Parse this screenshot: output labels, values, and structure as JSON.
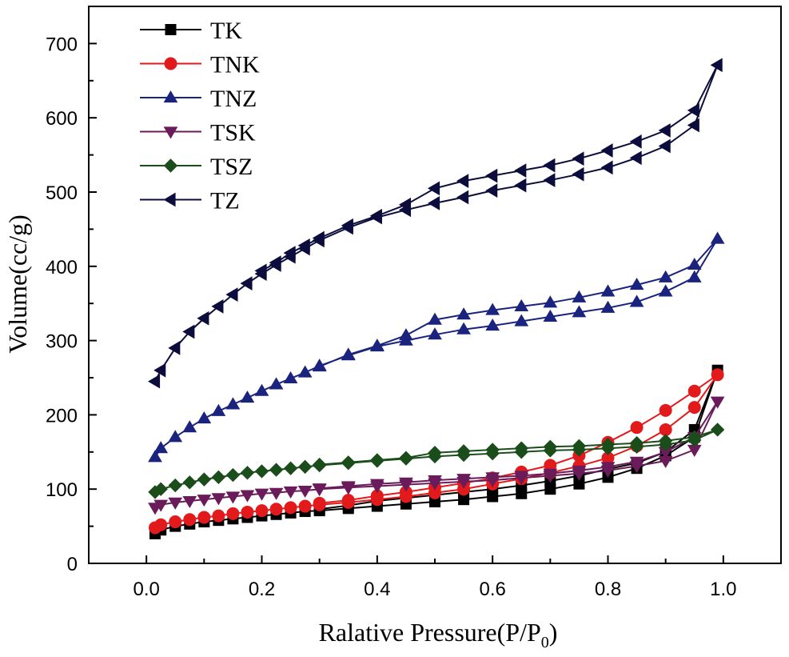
{
  "chart_data": {
    "type": "line",
    "title": "",
    "xlabel": "Ralative Pressure(P/P",
    "xlabel_subscript": "0",
    "xlabel_suffix": ")",
    "ylabel": "Volume(cc/g)",
    "xlim": [
      -0.1,
      1.1
    ],
    "ylim": [
      0,
      750
    ],
    "xticks": [
      0.0,
      0.2,
      0.4,
      0.6,
      0.8,
      1.0
    ],
    "xtick_labels": [
      "0.0",
      "0.2",
      "0.4",
      "0.6",
      "0.8",
      "1.0"
    ],
    "yticks": [
      0,
      100,
      200,
      300,
      400,
      500,
      600,
      700
    ],
    "ytick_labels": [
      "0",
      "100",
      "200",
      "300",
      "400",
      "500",
      "600",
      "700"
    ],
    "grid": false,
    "legend_position": "top-left",
    "series": [
      {
        "name": "TK",
        "color": "#000000",
        "marker": "square",
        "x": [
          0.015,
          0.025,
          0.05,
          0.075,
          0.1,
          0.125,
          0.15,
          0.175,
          0.2,
          0.225,
          0.25,
          0.275,
          0.3,
          0.35,
          0.4,
          0.45,
          0.5,
          0.55,
          0.6,
          0.65,
          0.7,
          0.75,
          0.8,
          0.85,
          0.9,
          0.95,
          0.99,
          0.95,
          0.9,
          0.85,
          0.8,
          0.75,
          0.7,
          0.65,
          0.6,
          0.55,
          0.5,
          0.45,
          0.4,
          0.35,
          0.3
        ],
        "y": [
          40,
          45,
          50,
          53,
          56,
          58,
          60,
          62,
          64,
          66,
          68,
          70,
          71,
          74,
          77,
          80,
          83,
          86,
          90,
          94,
          100,
          107,
          116,
          128,
          145,
          170,
          260,
          180,
          150,
          135,
          127,
          118,
          111,
          105,
          100,
          96,
          92,
          88,
          84,
          78,
          73
        ]
      },
      {
        "name": "TNK",
        "color": "#e31a1c",
        "marker": "circle",
        "x": [
          0.015,
          0.025,
          0.05,
          0.075,
          0.1,
          0.125,
          0.15,
          0.175,
          0.2,
          0.225,
          0.25,
          0.275,
          0.3,
          0.35,
          0.4,
          0.45,
          0.5,
          0.55,
          0.6,
          0.65,
          0.7,
          0.75,
          0.8,
          0.85,
          0.9,
          0.95,
          0.99,
          0.95,
          0.9,
          0.85,
          0.8,
          0.75,
          0.7,
          0.65,
          0.6,
          0.55,
          0.5,
          0.45,
          0.4,
          0.35,
          0.3
        ],
        "y": [
          48,
          52,
          56,
          59,
          62,
          64,
          67,
          69,
          71,
          73,
          75,
          77,
          79,
          82,
          86,
          90,
          95,
          100,
          107,
          114,
          122,
          131,
          142,
          158,
          180,
          210,
          254,
          232,
          206,
          183,
          163,
          145,
          132,
          123,
          115,
          108,
          102,
          96,
          91,
          85,
          81
        ]
      },
      {
        "name": "TNZ",
        "color": "#1a237e",
        "marker": "triangle-up",
        "x": [
          0.015,
          0.025,
          0.05,
          0.075,
          0.1,
          0.125,
          0.15,
          0.175,
          0.2,
          0.225,
          0.25,
          0.275,
          0.3,
          0.35,
          0.4,
          0.45,
          0.5,
          0.55,
          0.6,
          0.65,
          0.7,
          0.75,
          0.8,
          0.85,
          0.9,
          0.95,
          0.99,
          0.95,
          0.9,
          0.85,
          0.8,
          0.75,
          0.7,
          0.65,
          0.6,
          0.55,
          0.5,
          0.45,
          0.4,
          0.35,
          0.3
        ],
        "y": [
          143,
          155,
          170,
          183,
          195,
          205,
          214,
          223,
          232,
          241,
          249,
          257,
          266,
          280,
          292,
          300,
          308,
          315,
          320,
          326,
          332,
          338,
          344,
          352,
          366,
          385,
          437,
          402,
          385,
          375,
          366,
          358,
          351,
          346,
          341,
          335,
          328,
          307,
          293,
          281,
          265
        ]
      },
      {
        "name": "TSK",
        "color": "#6a1b5a",
        "marker": "triangle-down",
        "x": [
          0.015,
          0.025,
          0.05,
          0.075,
          0.1,
          0.125,
          0.15,
          0.175,
          0.2,
          0.225,
          0.25,
          0.275,
          0.3,
          0.35,
          0.4,
          0.45,
          0.5,
          0.55,
          0.6,
          0.65,
          0.7,
          0.75,
          0.8,
          0.85,
          0.9,
          0.95,
          0.99,
          0.95,
          0.9,
          0.85,
          0.8,
          0.75,
          0.7,
          0.65,
          0.6,
          0.55,
          0.5,
          0.45,
          0.4,
          0.35,
          0.3
        ],
        "y": [
          75,
          79,
          82,
          84,
          86,
          88,
          90,
          92,
          94,
          95,
          97,
          98,
          100,
          102,
          104,
          106,
          108,
          110,
          112,
          115,
          118,
          121,
          125,
          131,
          138,
          153,
          218,
          170,
          150,
          137,
          130,
          125,
          121,
          118,
          116,
          114,
          112,
          109,
          107,
          104,
          101
        ]
      },
      {
        "name": "TSZ",
        "color": "#1b4d1b",
        "marker": "diamond",
        "x": [
          0.015,
          0.025,
          0.05,
          0.075,
          0.1,
          0.125,
          0.15,
          0.175,
          0.2,
          0.225,
          0.25,
          0.275,
          0.3,
          0.35,
          0.4,
          0.45,
          0.5,
          0.55,
          0.6,
          0.65,
          0.7,
          0.75,
          0.8,
          0.85,
          0.9,
          0.95,
          0.99,
          0.95,
          0.9,
          0.85,
          0.8,
          0.75,
          0.7,
          0.65,
          0.6,
          0.55,
          0.5,
          0.45,
          0.4,
          0.35,
          0.3
        ],
        "y": [
          96,
          100,
          105,
          109,
          113,
          116,
          119,
          122,
          124,
          126,
          128,
          130,
          132,
          135,
          138,
          141,
          144,
          146,
          148,
          150,
          152,
          153,
          155,
          157,
          160,
          166,
          180,
          170,
          165,
          162,
          160,
          158,
          157,
          155,
          153,
          151,
          149,
          142,
          139,
          136,
          133
        ]
      },
      {
        "name": "TZ",
        "color": "#0d0d3d",
        "marker": "triangle-left",
        "x": [
          0.015,
          0.025,
          0.05,
          0.075,
          0.1,
          0.125,
          0.15,
          0.175,
          0.2,
          0.225,
          0.25,
          0.275,
          0.3,
          0.35,
          0.4,
          0.45,
          0.5,
          0.55,
          0.6,
          0.65,
          0.7,
          0.75,
          0.8,
          0.85,
          0.9,
          0.95,
          0.99,
          0.95,
          0.9,
          0.85,
          0.8,
          0.75,
          0.7,
          0.65,
          0.6,
          0.55,
          0.5,
          0.45,
          0.4,
          0.35,
          0.3,
          0.275,
          0.25,
          0.225,
          0.2
        ],
        "y": [
          245,
          260,
          290,
          312,
          330,
          346,
          362,
          377,
          390,
          402,
          413,
          424,
          435,
          452,
          466,
          476,
          485,
          493,
          502,
          509,
          516,
          524,
          533,
          546,
          562,
          590,
          671,
          610,
          583,
          568,
          556,
          545,
          536,
          529,
          522,
          515,
          505,
          483,
          468,
          455,
          438,
          428,
          418,
          405,
          394
        ]
      }
    ]
  }
}
